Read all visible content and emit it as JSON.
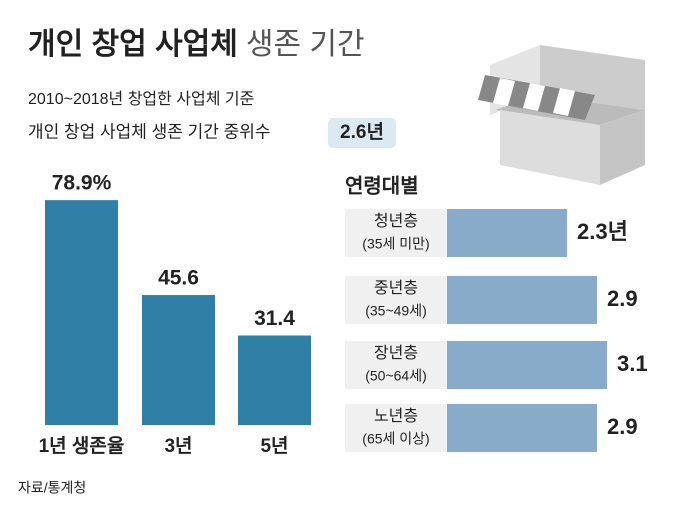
{
  "header": {
    "title": "개인 창업 사업체",
    "title_light": "생존 기간",
    "subtitle": "2010~2018년 창업한 사업체 기준",
    "median_label": "개인 창업 사업체 생존 기간 중위수",
    "median_value": "2.6년"
  },
  "chart_data": [
    {
      "type": "bar",
      "categories": [
        "1년 생존율",
        "3년",
        "5년"
      ],
      "values": [
        78.9,
        45.6,
        31.4
      ],
      "value_labels": [
        "78.9%",
        "45.6",
        "31.4"
      ],
      "color": "#2f7fa6"
    },
    {
      "type": "hbar",
      "title": "연령대별",
      "categories": [
        "청년층",
        "중년층",
        "장년층",
        "노년층"
      ],
      "category_details": [
        "(35세 미만)",
        "(35~49세)",
        "(50~64세)",
        "(65세 이상)"
      ],
      "values": [
        2.3,
        2.9,
        3.1,
        2.9
      ],
      "value_labels": [
        "2.3년",
        "2.9",
        "3.1",
        "2.9"
      ],
      "color": "#88abc9"
    }
  ],
  "footer": {
    "source": "자료/통계청"
  }
}
